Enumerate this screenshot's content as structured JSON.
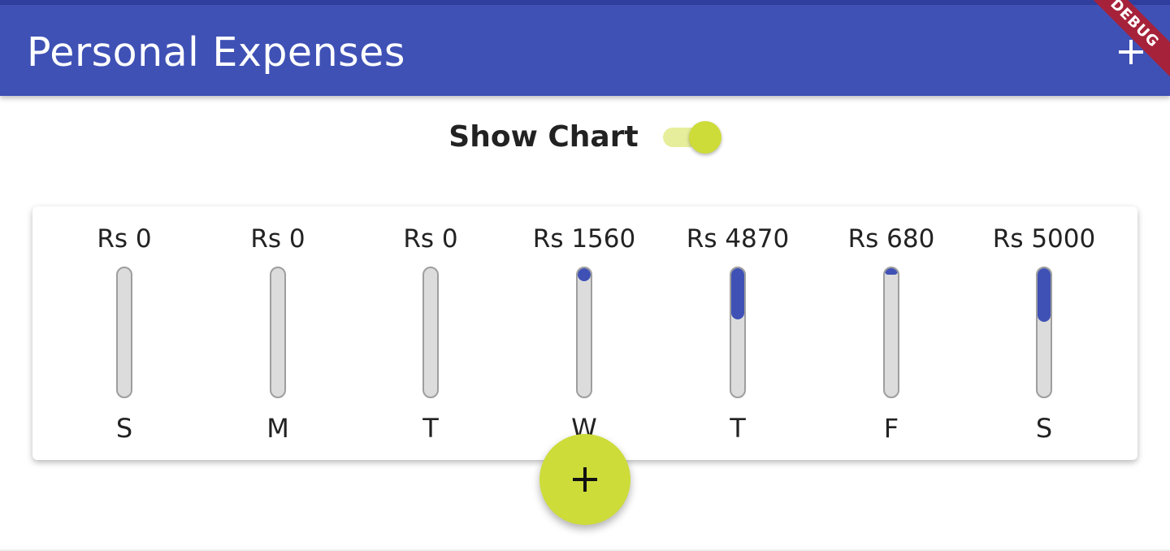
{
  "app_bar": {
    "title": "Personal Expenses",
    "add_icon": "plus-icon",
    "debug_banner": "DEBUG",
    "color": "#3f51b5"
  },
  "toggle": {
    "label": "Show Chart",
    "on": true,
    "accent": "#cddc39"
  },
  "chart_data": {
    "type": "bar",
    "categories": [
      "S",
      "M",
      "T",
      "W",
      "T",
      "F",
      "S"
    ],
    "amount_labels": [
      "Rs 0",
      "Rs 0",
      "Rs 0",
      "Rs 1560",
      "Rs 4870",
      "Rs 680",
      "Rs 5000"
    ],
    "values": [
      0,
      0,
      0,
      1560,
      4870,
      680,
      5000
    ],
    "fill_fraction": [
      0,
      0,
      0,
      0.1,
      0.4,
      0.05,
      0.42
    ],
    "bar_color": "#3f51b5",
    "track_color": "#dcdcdc"
  },
  "fab": {
    "icon": "plus-icon",
    "color": "#cddc39"
  }
}
